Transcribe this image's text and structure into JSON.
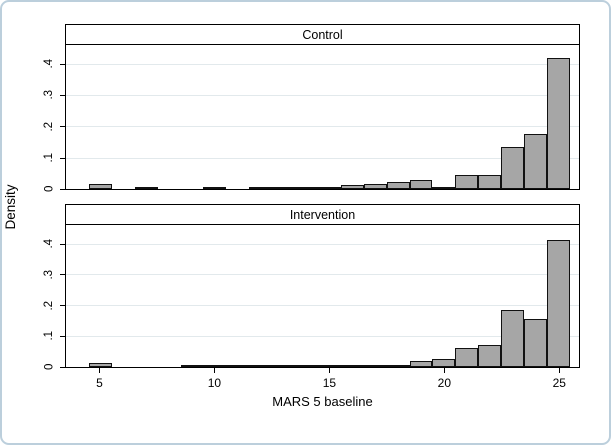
{
  "chart_data": {
    "type": "bar",
    "subtype": "histogram",
    "title": "",
    "xlabel": "MARS 5 baseline",
    "ylabel": "Density",
    "xlim": [
      3.5,
      25.9
    ],
    "ylim": [
      0,
      0.46
    ],
    "bin_width": 1,
    "grid": "horizontal",
    "x_ticks": [
      {
        "v": 5,
        "label": "5"
      },
      {
        "v": 10,
        "label": "10"
      },
      {
        "v": 15,
        "label": "15"
      },
      {
        "v": 20,
        "label": "20"
      },
      {
        "v": 25,
        "label": "25"
      }
    ],
    "y_ticks": [
      {
        "v": 0,
        "label": "0",
        "grid": false
      },
      {
        "v": 0.1,
        "label": ".1",
        "grid": true
      },
      {
        "v": 0.2,
        "label": ".2",
        "grid": true
      },
      {
        "v": 0.3,
        "label": ".3",
        "grid": true
      },
      {
        "v": 0.4,
        "label": ".4",
        "grid": true
      }
    ],
    "panels": [
      {
        "title": "Control",
        "bins": [
          5,
          7,
          10,
          12,
          13,
          14,
          15,
          16,
          17,
          18,
          19,
          20,
          21,
          22,
          23,
          24,
          25
        ],
        "densities": [
          0.017,
          0.003,
          0.005,
          0.002,
          0.002,
          0.003,
          0.004,
          0.012,
          0.016,
          0.022,
          0.028,
          0.008,
          0.045,
          0.045,
          0.135,
          0.175,
          0.42
        ]
      },
      {
        "title": "Intervention",
        "bins": [
          5,
          9,
          10,
          11,
          12,
          13,
          14,
          15,
          16,
          17,
          18,
          19,
          20,
          21,
          22,
          23,
          24,
          25
        ],
        "densities": [
          0.012,
          0.003,
          0.002,
          0.002,
          0.002,
          0.002,
          0.002,
          0.003,
          0.004,
          0.005,
          0.007,
          0.018,
          0.027,
          0.06,
          0.07,
          0.185,
          0.155,
          0.41
        ]
      }
    ]
  },
  "colors": {
    "bar_fill": "#a6a6a6",
    "bar_border": "#111111",
    "gridline": "#e2e9ec",
    "axis": "#000000",
    "frame_border": "#bccfdc",
    "background": "#ffffff"
  }
}
